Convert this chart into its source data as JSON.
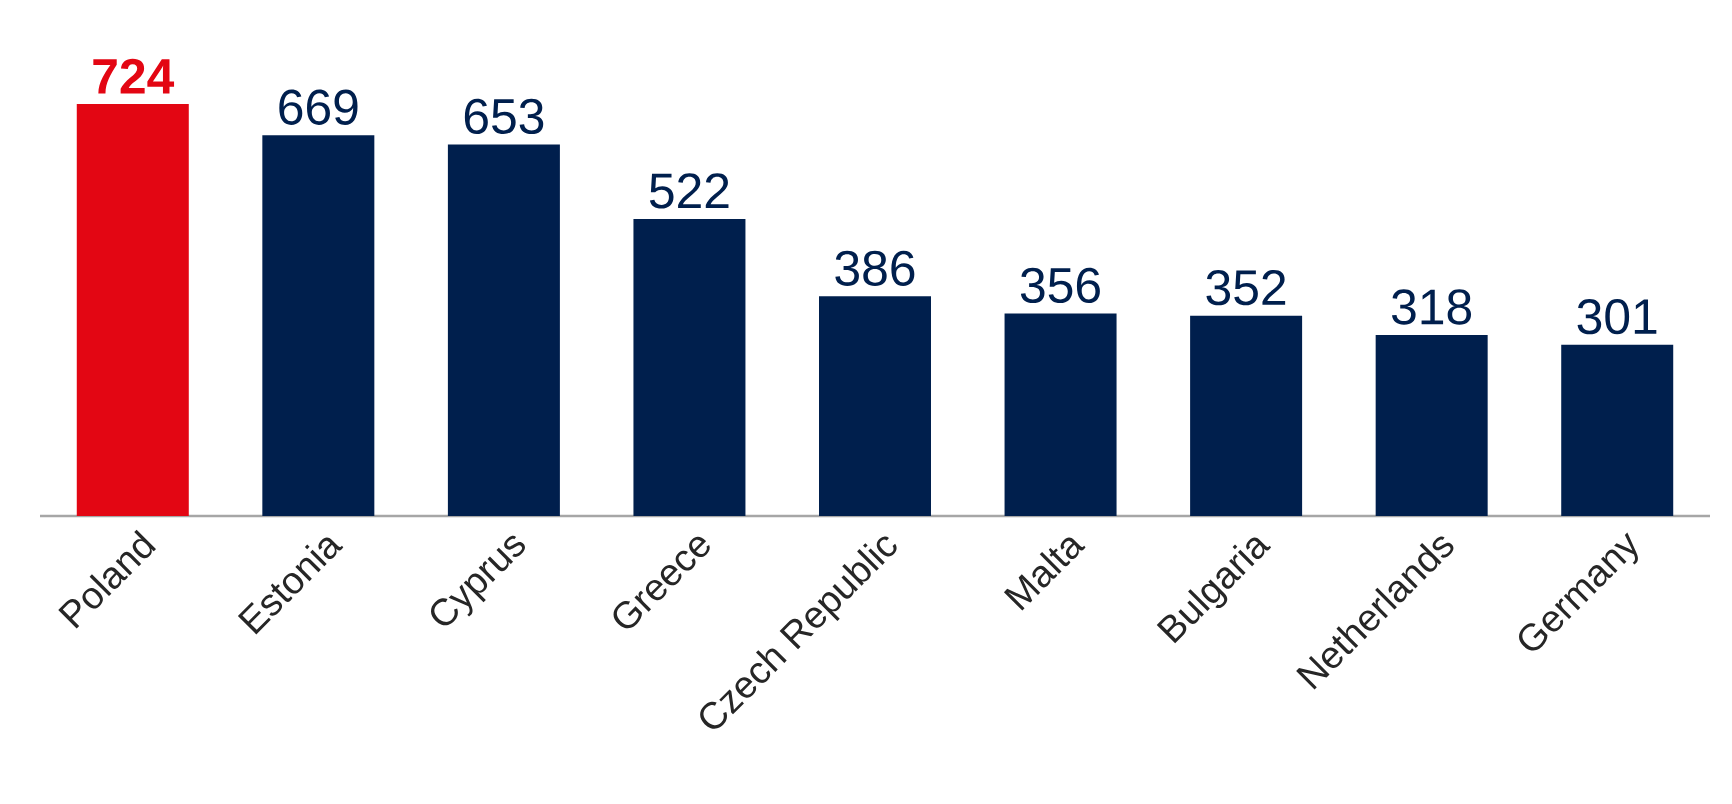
{
  "chart_data": {
    "type": "bar",
    "categories": [
      "Poland",
      "Estonia",
      "Cyprus",
      "Greece",
      "Czech Republic",
      "Malta",
      "Bulgaria",
      "Netherlands",
      "Germany"
    ],
    "values": [
      724,
      669,
      653,
      522,
      386,
      356,
      352,
      318,
      301
    ],
    "colors": [
      "#e30613",
      "#001f4d",
      "#001f4d",
      "#001f4d",
      "#001f4d",
      "#001f4d",
      "#001f4d",
      "#001f4d",
      "#001f4d"
    ],
    "value_labels": [
      "**724**",
      "669",
      "653",
      "522",
      "386",
      "356",
      "352",
      "318",
      "301"
    ]
  }
}
